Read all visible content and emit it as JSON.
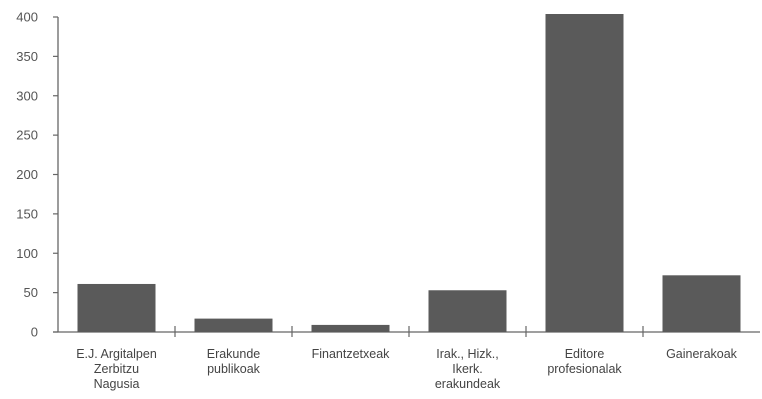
{
  "chart_data": {
    "type": "bar",
    "title": "",
    "xlabel": "",
    "ylabel": "",
    "categories": [
      [
        "E.J.  Argitalpen",
        "Zerbitzu",
        "Nagusia"
      ],
      [
        "Erakunde",
        "publikoak"
      ],
      [
        "Finantzetxeak"
      ],
      [
        "Irak.,   Hizk.,",
        "Ikerk.",
        "erakundeak"
      ],
      [
        "Editore",
        "profesionalak"
      ],
      [
        "Gainerakoak"
      ]
    ],
    "values": [
      61,
      17,
      9,
      53,
      405,
      72
    ],
    "ylim": [
      0,
      400
    ],
    "yticks": [
      0,
      50,
      100,
      150,
      200,
      250,
      300,
      350,
      400
    ],
    "grid": false,
    "legend": "none",
    "colors": {
      "bar": "#5a5a5a",
      "axis": "#666666"
    }
  }
}
